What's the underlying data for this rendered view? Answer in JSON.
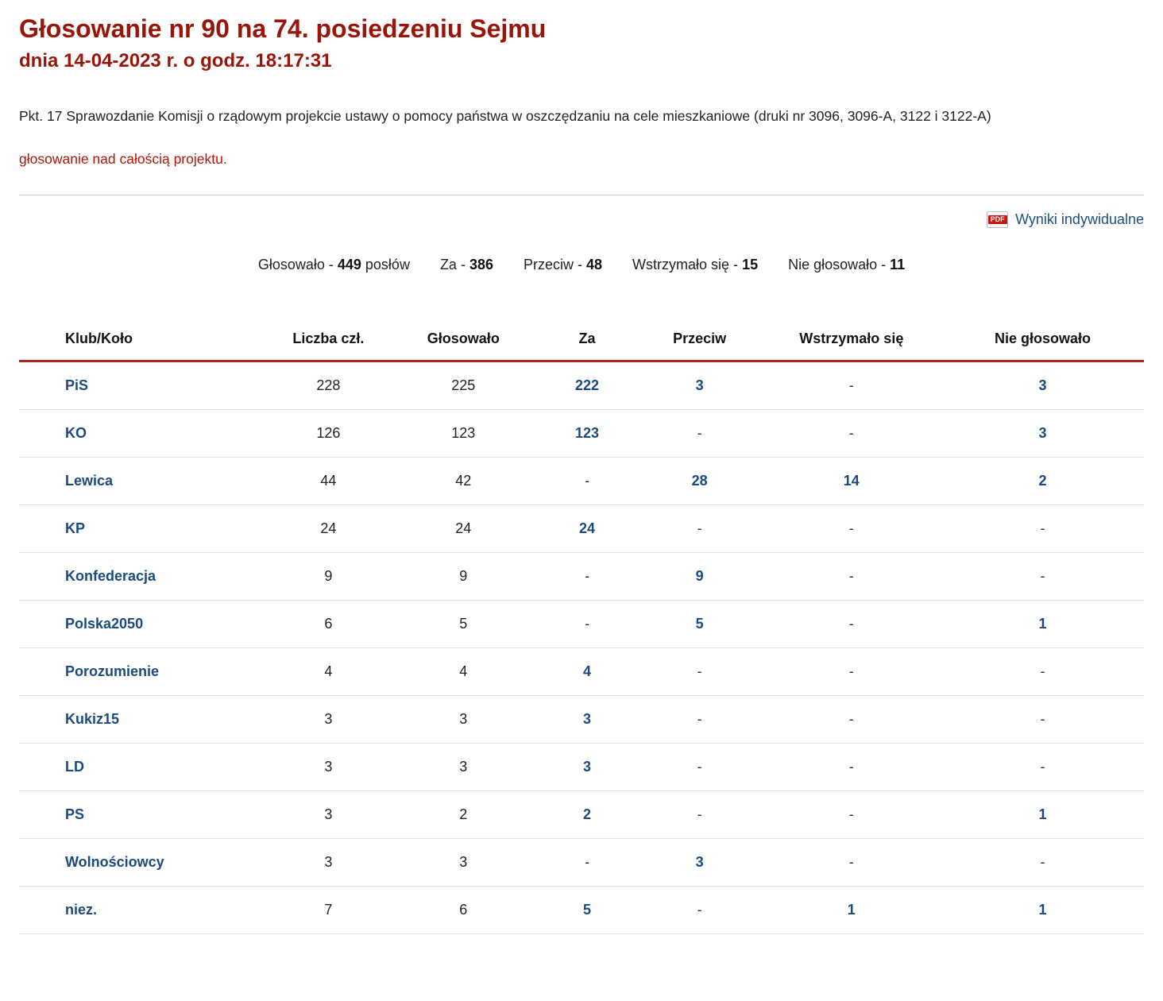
{
  "header": {
    "title": "Głosowanie nr 90 na 74. posiedzeniu Sejmu",
    "subtitle": "dnia 14-04-2023 r. o godz. 18:17:31",
    "topic": "Pkt. 17 Sprawozdanie Komisji o rządowym projekcie ustawy o pomocy państwa w oszczędzaniu na cele mieszkaniowe (druki nr 3096, 3096-A, 3122 i 3122-A)",
    "subject": "głosowanie nad całością projektu."
  },
  "links": {
    "pdf_label": "Wyniki indywidualne",
    "pdf_icon_text": "PDF"
  },
  "summary": {
    "items": [
      {
        "label": "Głosowało -",
        "value": "449",
        "suffix": "posłów"
      },
      {
        "label": "Za -",
        "value": "386",
        "suffix": ""
      },
      {
        "label": "Przeciw -",
        "value": "48",
        "suffix": ""
      },
      {
        "label": "Wstrzymało się -",
        "value": "15",
        "suffix": ""
      },
      {
        "label": "Nie głosowało -",
        "value": "11",
        "suffix": ""
      }
    ]
  },
  "table": {
    "headers": [
      "Klub/Koło",
      "Liczba czł.",
      "Głosowało",
      "Za",
      "Przeciw",
      "Wstrzymało się",
      "Nie głosowało"
    ],
    "rows": [
      {
        "club": "PiS",
        "members": "228",
        "voted": "225",
        "for": "222",
        "against": "3",
        "abstained": "-",
        "not_voting": "3"
      },
      {
        "club": "KO",
        "members": "126",
        "voted": "123",
        "for": "123",
        "against": "-",
        "abstained": "-",
        "not_voting": "3"
      },
      {
        "club": "Lewica",
        "members": "44",
        "voted": "42",
        "for": "-",
        "against": "28",
        "abstained": "14",
        "not_voting": "2"
      },
      {
        "club": "KP",
        "members": "24",
        "voted": "24",
        "for": "24",
        "against": "-",
        "abstained": "-",
        "not_voting": "-"
      },
      {
        "club": "Konfederacja",
        "members": "9",
        "voted": "9",
        "for": "-",
        "against": "9",
        "abstained": "-",
        "not_voting": "-"
      },
      {
        "club": "Polska2050",
        "members": "6",
        "voted": "5",
        "for": "-",
        "against": "5",
        "abstained": "-",
        "not_voting": "1"
      },
      {
        "club": "Porozumienie",
        "members": "4",
        "voted": "4",
        "for": "4",
        "against": "-",
        "abstained": "-",
        "not_voting": "-"
      },
      {
        "club": "Kukiz15",
        "members": "3",
        "voted": "3",
        "for": "3",
        "against": "-",
        "abstained": "-",
        "not_voting": "-"
      },
      {
        "club": "LD",
        "members": "3",
        "voted": "3",
        "for": "3",
        "against": "-",
        "abstained": "-",
        "not_voting": "-"
      },
      {
        "club": "PS",
        "members": "3",
        "voted": "2",
        "for": "2",
        "against": "-",
        "abstained": "-",
        "not_voting": "1"
      },
      {
        "club": "Wolnościowcy",
        "members": "3",
        "voted": "3",
        "for": "-",
        "against": "3",
        "abstained": "-",
        "not_voting": "-"
      },
      {
        "club": "niez.",
        "members": "7",
        "voted": "6",
        "for": "5",
        "against": "-",
        "abstained": "1",
        "not_voting": "1"
      }
    ]
  },
  "colors": {
    "title_red": "#991409",
    "accent_red": "#b51505",
    "link_blue": "#1c4f8a",
    "club_navy": "#1a4a80",
    "header_rule_red": "#a8241a",
    "row_border": "#e4e4e4",
    "text_dark": "#1f1f1f"
  }
}
